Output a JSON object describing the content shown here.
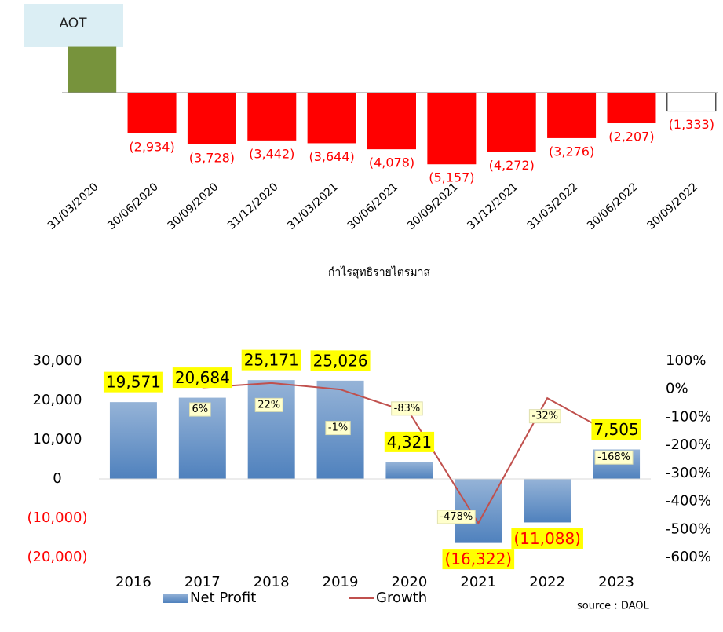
{
  "chart_data": [
    {
      "type": "bar",
      "title": "AOT",
      "xlabel": "กำไรสุทธิรายไตรมาส",
      "categories": [
        "31/03/2020",
        "30/06/2020",
        "30/09/2020",
        "31/12/2020",
        "31/03/2021",
        "30/06/2021",
        "30/09/2021",
        "31/12/2021",
        "31/03/2022",
        "30/06/2022",
        "30/09/2022"
      ],
      "values": [
        3300,
        -2934,
        -3728,
        -3442,
        -3644,
        -4078,
        -5157,
        -4272,
        -3276,
        -2207,
        -1333
      ],
      "value_labels": [
        null,
        "(2,934)",
        "(3,728)",
        "(3,442)",
        "(3,644)",
        "(4,078)",
        "(5,157)",
        "(4,272)",
        "(3,276)",
        "(2,207)",
        "(1,333)"
      ],
      "colors": [
        "#77933c",
        "#ff0000",
        "#ff0000",
        "#ff0000",
        "#ff0000",
        "#ff0000",
        "#ff0000",
        "#ff0000",
        "#ff0000",
        "#ff0000",
        "#ffffff"
      ],
      "negative_color": "#ff0000",
      "ylim": [
        -6500,
        3500
      ]
    },
    {
      "type": "combo",
      "source": "source : DAOL",
      "categories": [
        "2016",
        "2017",
        "2018",
        "2019",
        "2020",
        "2021",
        "2022",
        "2023"
      ],
      "series": [
        {
          "name": "Net Profit",
          "type": "bar",
          "color": "#4f81bd",
          "values": [
            19571,
            20684,
            25171,
            25026,
            4321,
            -16322,
            -11088,
            7505
          ],
          "value_labels": [
            "19,571",
            "20,684",
            "25,171",
            "25,026",
            "4,321",
            "(16,322)",
            "(11,088)",
            "7,505"
          ]
        },
        {
          "name": "Growth",
          "type": "line",
          "color": "#c0504d",
          "axis": "y2",
          "values": [
            null,
            6,
            22,
            -1,
            -83,
            -478,
            -32,
            -168
          ],
          "value_labels": [
            null,
            "6%",
            "22%",
            "-1%",
            "-83%",
            "-478%",
            "-32%",
            "-168%"
          ]
        }
      ],
      "negative_color": "#ff0000",
      "ylim": [
        -20000,
        30000
      ],
      "yticks": [
        {
          "value": 30000,
          "label": "30,000"
        },
        {
          "value": 20000,
          "label": "20,000"
        },
        {
          "value": 10000,
          "label": "10,000"
        },
        0,
        {
          "value": -10000,
          "label": "(10,000)"
        },
        {
          "value": -20000,
          "label": "(20,000)"
        }
      ],
      "y2lim": [
        -600,
        100
      ],
      "y2ticks": [
        {
          "value": 100,
          "label": "100%"
        },
        {
          "value": 0,
          "label": "0%"
        },
        {
          "value": -100,
          "label": "-100%"
        },
        {
          "value": -200,
          "label": "-200%"
        },
        {
          "value": -300,
          "label": "-300%"
        },
        {
          "value": -400,
          "label": "-400%"
        },
        {
          "value": -500,
          "label": "-500%"
        },
        {
          "value": -600,
          "label": "-600%"
        }
      ]
    }
  ]
}
